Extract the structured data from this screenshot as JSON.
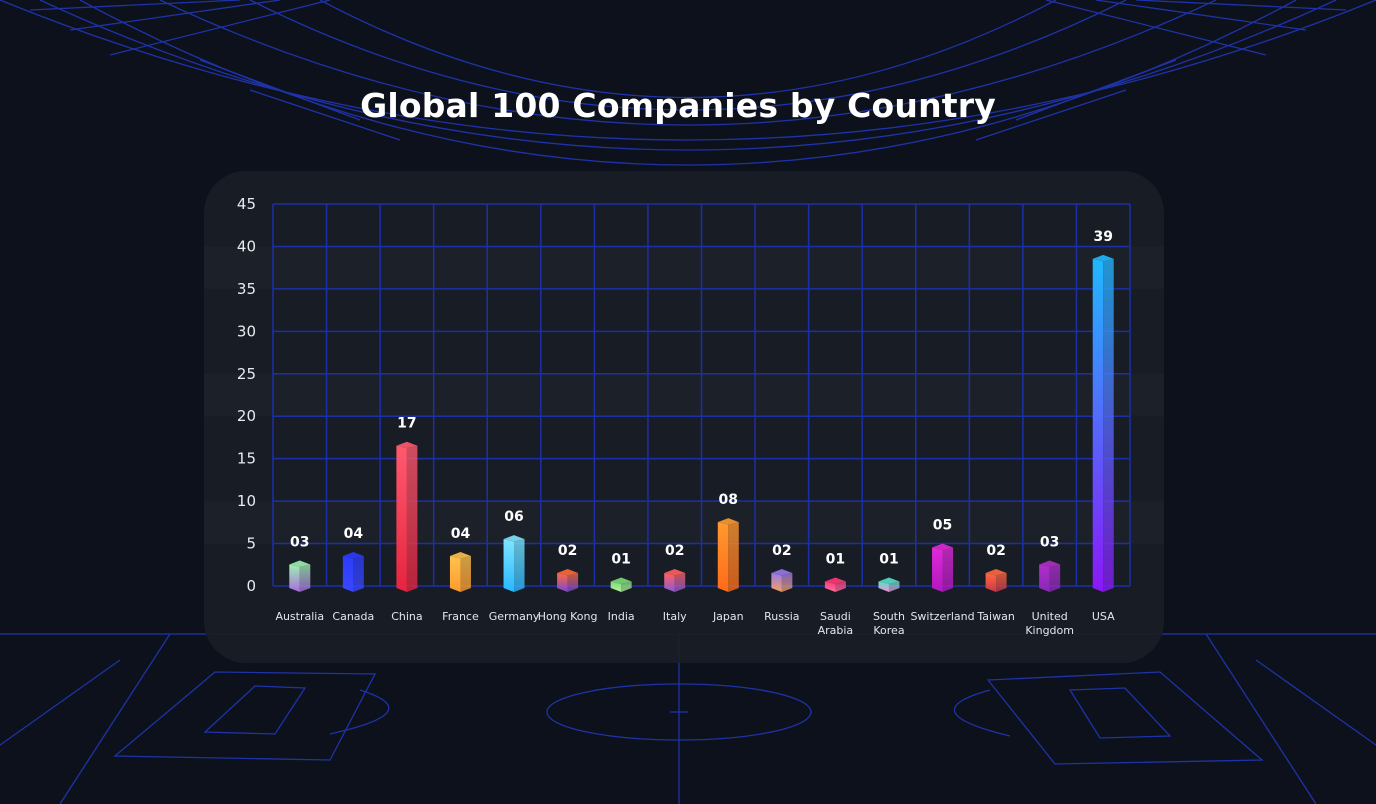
{
  "title": "Global 100 Companies by Country",
  "colors": {
    "background": "#0c111b",
    "panel": "#1a1e26",
    "grid": "#1b2fa8",
    "field_lines": "#1f33a8"
  },
  "chart_data": {
    "type": "bar",
    "title": "Global 100 Companies by Country",
    "xlabel": "",
    "ylabel": "",
    "ylim": [
      0,
      45
    ],
    "yticks": [
      0,
      5,
      10,
      15,
      20,
      25,
      30,
      35,
      40,
      45
    ],
    "grid": true,
    "categories": [
      [
        "Australia"
      ],
      [
        "Canada"
      ],
      [
        "China"
      ],
      [
        "France"
      ],
      [
        "Germany"
      ],
      [
        "Hong Kong"
      ],
      [
        "India"
      ],
      [
        "Italy"
      ],
      [
        "Japan"
      ],
      [
        "Russia"
      ],
      [
        "Saudi",
        "Arabia"
      ],
      [
        "South",
        "Korea"
      ],
      [
        "Switzerland"
      ],
      [
        "Taiwan"
      ],
      [
        "United",
        "Kingdom"
      ],
      [
        "USA"
      ]
    ],
    "values": [
      3,
      4,
      17,
      4,
      6,
      2,
      1,
      2,
      8,
      2,
      1,
      1,
      5,
      2,
      3,
      39
    ],
    "value_labels": [
      "03",
      "04",
      "17",
      "04",
      "06",
      "02",
      "01",
      "02",
      "08",
      "02",
      "01",
      "01",
      "05",
      "02",
      "03",
      "39"
    ],
    "bar_colors": [
      [
        "#9ff0b0",
        "#a86ce0"
      ],
      [
        "#2b3cff",
        "#3a48ff"
      ],
      [
        "#ff5a6e",
        "#e6243f"
      ],
      [
        "#ffc24d",
        "#ff9a2e"
      ],
      [
        "#7ee6ff",
        "#27b8ff"
      ],
      [
        "#ff6a3a",
        "#7a46d8"
      ],
      [
        "#7cdc78",
        "#b6f09a"
      ],
      [
        "#ff6060",
        "#8a5ad6"
      ],
      [
        "#ff9a30",
        "#ff6a18"
      ],
      [
        "#9a78e8",
        "#f4a060"
      ],
      [
        "#ff3a78",
        "#ff70a0"
      ],
      [
        "#58e0c8",
        "#f090d8"
      ],
      [
        "#e02ad8",
        "#b018c0"
      ],
      [
        "#ff6840",
        "#c83848"
      ],
      [
        "#b030c8",
        "#8828b8"
      ],
      [
        "#20b8ff",
        "#8a18f8"
      ]
    ]
  }
}
